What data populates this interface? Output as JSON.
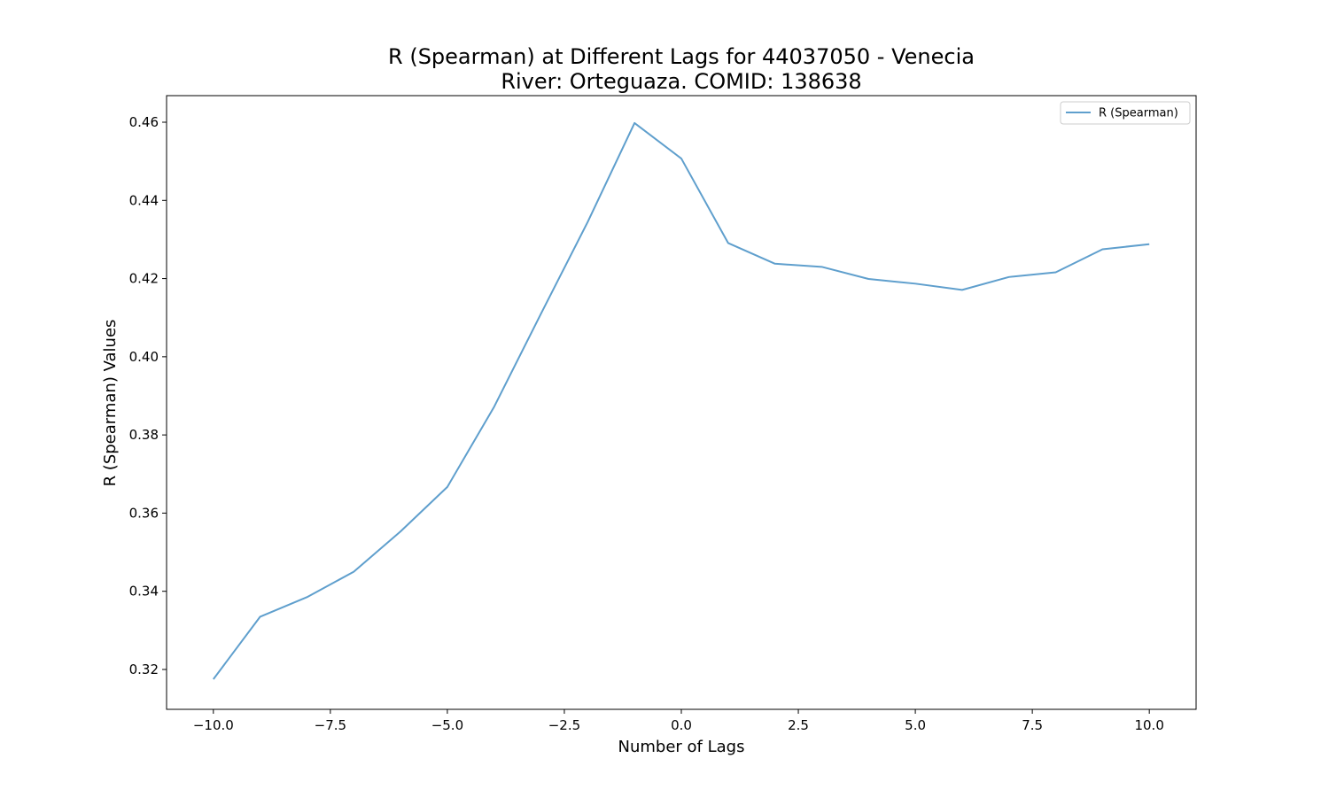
{
  "chart_data": {
    "type": "line",
    "title": "R (Spearman) at Different Lags for 44037050 - Venecia",
    "subtitle": "River: Orteguaza. COMID: 138638",
    "xlabel": "Number of Lags",
    "ylabel": "R (Spearman) Values",
    "xlim": [
      -11,
      11
    ],
    "ylim": [
      0.3098,
      0.4668
    ],
    "x_ticks": [
      -10.0,
      -7.5,
      -5.0,
      -2.5,
      0.0,
      2.5,
      5.0,
      7.5,
      10.0
    ],
    "x_tick_labels": [
      "−10.0",
      "−7.5",
      "−5.0",
      "−2.5",
      "0.0",
      "2.5",
      "5.0",
      "7.5",
      "10.0"
    ],
    "y_ticks": [
      0.32,
      0.34,
      0.36,
      0.38,
      0.4,
      0.42,
      0.44,
      0.46
    ],
    "y_tick_labels": [
      "0.32",
      "0.34",
      "0.36",
      "0.38",
      "0.40",
      "0.42",
      "0.44",
      "0.46"
    ],
    "grid": false,
    "legend_position": "top-right",
    "series": [
      {
        "name": "R (Spearman)",
        "color": "#5f9fcd",
        "x": [
          -10,
          -9,
          -8,
          -7,
          -6,
          -5,
          -4,
          -3,
          -2,
          -1,
          0,
          1,
          2,
          3,
          4,
          5,
          6,
          7,
          8,
          9,
          10
        ],
        "values": [
          0.3175,
          0.3335,
          0.3385,
          0.345,
          0.3553,
          0.3667,
          0.3872,
          0.411,
          0.4345,
          0.4598,
          0.4507,
          0.4291,
          0.4238,
          0.423,
          0.4199,
          0.4187,
          0.4171,
          0.4204,
          0.4216,
          0.4275,
          0.4288
        ]
      }
    ]
  }
}
